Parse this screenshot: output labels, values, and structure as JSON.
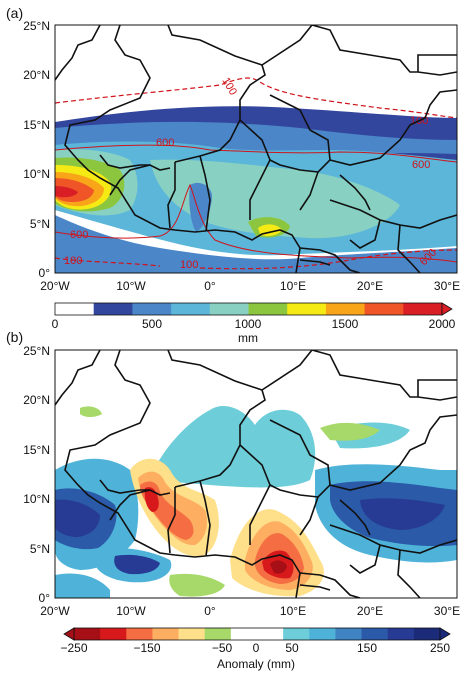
{
  "panels": [
    {
      "letter": "(a)",
      "map": {
        "lat_ticks": [
          "0°",
          "5°N",
          "10°N",
          "15°N",
          "20°N",
          "25°N"
        ],
        "lon_ticks": [
          "20°W",
          "10°W",
          "0°",
          "10°E",
          "20°E",
          "30°E"
        ],
        "contours": {
          "color": "#d0141b",
          "labels": [
            "100",
            "100",
            "100",
            "100",
            "600",
            "600",
            "600",
            "600"
          ]
        }
      },
      "colorbar": {
        "unit": "mm",
        "ticks": [
          "0",
          "500",
          "1000",
          "1500",
          "2000"
        ],
        "colors": [
          "#ffffff",
          "#33469d",
          "#4b86c8",
          "#5bb6d9",
          "#88d1c2",
          "#8cc63e",
          "#f5ea14",
          "#f9a51a",
          "#ef5526",
          "#d91e26"
        ]
      }
    },
    {
      "letter": "(b)",
      "map": {
        "lat_ticks": [
          "0°",
          "5°N",
          "10°N",
          "15°N",
          "20°N",
          "25°N"
        ],
        "lon_ticks": [
          "20°W",
          "10°W",
          "0°",
          "10°E",
          "20°E",
          "30°E"
        ]
      },
      "colorbar": {
        "unit": "Anomaly (mm)",
        "ticks": [
          "−250",
          "−150",
          "−50",
          "0",
          "50",
          "150",
          "250"
        ],
        "colors": [
          "#a50f15",
          "#d7191c",
          "#f46d43",
          "#fdae61",
          "#fee08b",
          "#a6d96a",
          "#ffffff",
          "#ffffff",
          "#6dcdd9",
          "#4fb3d9",
          "#3f83c3",
          "#2a5aa8",
          "#273a94",
          "#1c2a7a"
        ]
      }
    }
  ]
}
